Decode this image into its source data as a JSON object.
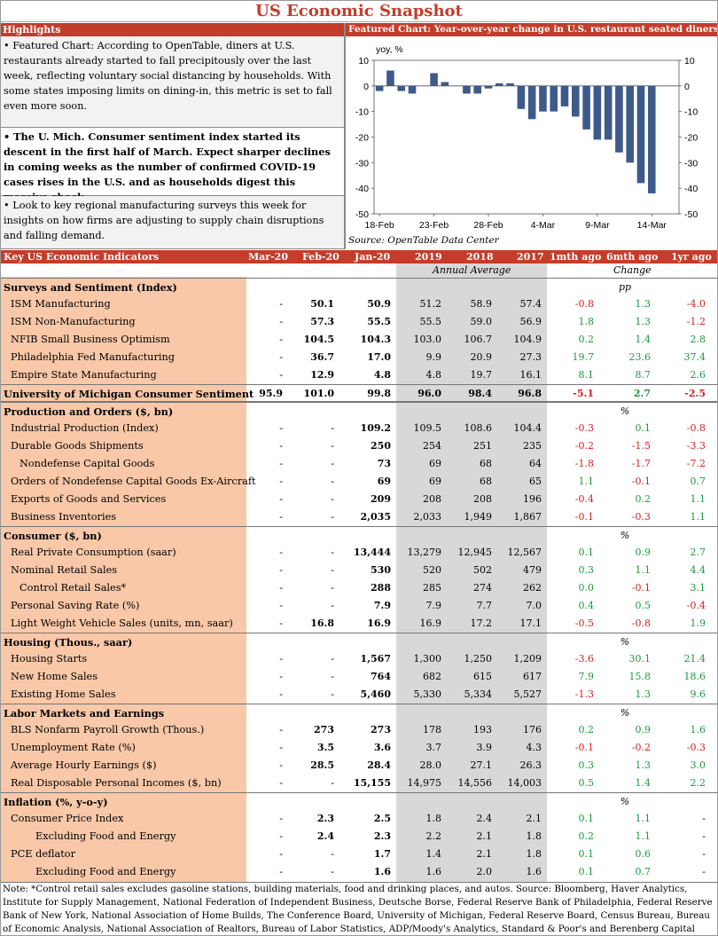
{
  "title": "US Economic Snapshot",
  "highlights": {
    "header": "Highlights",
    "items": [
      "• Featured Chart: According to OpenTable, diners at U.S. restaurants already started to fall precipitously over the last week, reflecting voluntary social distancing by households. With some states imposing limits on dining-in, this metric is set to fall even more soon.",
      "• The U. Mich. Consumer sentiment index started its descent in the first half of March. Expect sharper declines in coming weeks as the number of confirmed COVID-19 cases rises in the U.S. and as households digest this massive shock.",
      "• Look to key regional manufacturing surveys this week for insights on how firms are adjusting to supply chain disruptions and falling demand."
    ]
  },
  "featured": {
    "header": "Featured Chart: Year-over-year change in U.S. restaurant seated diners",
    "source": "Source: OpenTable Data Center"
  },
  "chart_data": {
    "type": "bar",
    "ylabel": "yoy, %",
    "ylim": [
      -50,
      10
    ],
    "yticks": [
      10,
      0,
      -10,
      -20,
      -30,
      -40,
      -50
    ],
    "xtick_labels": [
      "18-Feb",
      "23-Feb",
      "28-Feb",
      "4-Mar",
      "9-Mar",
      "14-Mar"
    ],
    "categories": [
      "18-Feb",
      "19-Feb",
      "20-Feb",
      "21-Feb",
      "22-Feb",
      "23-Feb",
      "24-Feb",
      "25-Feb",
      "26-Feb",
      "27-Feb",
      "28-Feb",
      "29-Feb",
      "1-Mar",
      "2-Mar",
      "3-Mar",
      "4-Mar",
      "5-Mar",
      "6-Mar",
      "7-Mar",
      "8-Mar",
      "9-Mar",
      "10-Mar",
      "11-Mar",
      "12-Mar",
      "13-Mar",
      "14-Mar",
      "15-Mar",
      "16-Mar"
    ],
    "values": [
      -2,
      6,
      -2,
      -3,
      0,
      5,
      1.5,
      0,
      -3,
      -3,
      -1,
      1,
      1,
      -9,
      -13,
      -10,
      -10,
      -8,
      -12,
      -17,
      -21,
      -21,
      -26,
      -30,
      -38,
      -42,
      0,
      0
    ]
  },
  "table": {
    "header": {
      "label": "Key US Economic Indicators",
      "cols": [
        "Mar-20",
        "Feb-20",
        "Jan-20",
        "2019",
        "2018",
        "2017",
        "1mth ago",
        "6mth ago",
        "1yr ago"
      ]
    },
    "annual_average": "Annual Average",
    "change": "Change",
    "sections": [
      {
        "title": "Surveys and Sentiment (Index)",
        "unit": "pp",
        "rows": [
          {
            "label": "ISM Manufacturing",
            "indent": 1,
            "vals": [
              "-",
              "50.1",
              "50.9",
              "51.2",
              "58.9",
              "57.4"
            ],
            "chg": [
              "-0.8",
              "1.3",
              "-4.0"
            ]
          },
          {
            "label": "ISM Non-Manufacturing",
            "indent": 1,
            "vals": [
              "-",
              "57.3",
              "55.5",
              "55.5",
              "59.0",
              "56.9"
            ],
            "chg": [
              "1.8",
              "1.3",
              "-1.2"
            ]
          },
          {
            "label": "NFIB Small Business Optimism",
            "indent": 1,
            "vals": [
              "-",
              "104.5",
              "104.3",
              "103.0",
              "106.7",
              "104.9"
            ],
            "chg": [
              "0.2",
              "1.4",
              "2.8"
            ]
          },
          {
            "label": "Philadelphia Fed Manufacturing",
            "indent": 1,
            "vals": [
              "-",
              "36.7",
              "17.0",
              "9.9",
              "20.9",
              "27.3"
            ],
            "chg": [
              "19.7",
              "23.6",
              "37.4"
            ]
          },
          {
            "label": "Empire State Manufacturing",
            "indent": 1,
            "vals": [
              "-",
              "12.9",
              "4.8",
              "4.8",
              "19.7",
              "16.1"
            ],
            "chg": [
              "8.1",
              "8.7",
              "2.6"
            ]
          },
          {
            "label": "University of Michigan Consumer Sentiment",
            "indent": 0,
            "bold": true,
            "vals": [
              "95.9",
              "101.0",
              "99.8",
              "96.0",
              "98.4",
              "96.8"
            ],
            "chg": [
              "-5.1",
              "2.7",
              "-2.5"
            ]
          }
        ]
      },
      {
        "title": "Production and Orders ($, bn)",
        "unit": "%",
        "rows": [
          {
            "label": "Industrial Production (Index)",
            "indent": 1,
            "vals": [
              "-",
              "-",
              "109.2",
              "109.5",
              "108.6",
              "104.4"
            ],
            "chg": [
              "-0.3",
              "0.1",
              "-0.8"
            ]
          },
          {
            "label": "Durable Goods Shipments",
            "indent": 1,
            "vals": [
              "-",
              "-",
              "250",
              "254",
              "251",
              "235"
            ],
            "chg": [
              "-0.2",
              "-1.5",
              "-3.3"
            ]
          },
          {
            "label": "Nondefense Capital Goods",
            "indent": 2,
            "vals": [
              "-",
              "-",
              "73",
              "69",
              "68",
              "64"
            ],
            "chg": [
              "-1.8",
              "-1.7",
              "-7.2"
            ]
          },
          {
            "label": "Orders of Nondefense Capital Goods Ex-Aircraft",
            "indent": 1,
            "vals": [
              "-",
              "-",
              "69",
              "69",
              "68",
              "65"
            ],
            "chg": [
              "1.1",
              "-0.1",
              "0.7"
            ]
          },
          {
            "label": "Exports of Goods and Services",
            "indent": 1,
            "vals": [
              "-",
              "-",
              "209",
              "208",
              "208",
              "196"
            ],
            "chg": [
              "-0.4",
              "0.2",
              "1.1"
            ]
          },
          {
            "label": "Business Inventories",
            "indent": 1,
            "vals": [
              "-",
              "-",
              "2,035",
              "2,033",
              "1,949",
              "1,867"
            ],
            "chg": [
              "-0.1",
              "-0.3",
              "1.1"
            ]
          }
        ]
      },
      {
        "title": "Consumer ($, bn)",
        "unit": "%",
        "rows": [
          {
            "label": "Real Private Consumption (saar)",
            "indent": 1,
            "vals": [
              "-",
              "-",
              "13,444",
              "13,279",
              "12,945",
              "12,567"
            ],
            "chg": [
              "0.1",
              "0.9",
              "2.7"
            ]
          },
          {
            "label": "Nominal Retail Sales",
            "indent": 1,
            "vals": [
              "-",
              "-",
              "530",
              "520",
              "502",
              "479"
            ],
            "chg": [
              "0.3",
              "1.1",
              "4.4"
            ]
          },
          {
            "label": "Control Retail Sales*",
            "indent": 2,
            "vals": [
              "-",
              "-",
              "288",
              "285",
              "274",
              "262"
            ],
            "chg": [
              "0.0",
              "-0.1",
              "3.1"
            ]
          },
          {
            "label": "Personal Saving Rate (%)",
            "indent": 1,
            "vals": [
              "-",
              "-",
              "7.9",
              "7.9",
              "7.7",
              "7.0"
            ],
            "chg": [
              "0.4",
              "0.5",
              "-0.4"
            ]
          },
          {
            "label": "Light Weight Vehicle Sales (units, mn, saar)",
            "indent": 1,
            "vals": [
              "-",
              "16.8",
              "16.9",
              "16.9",
              "17.2",
              "17.1"
            ],
            "chg": [
              "-0.5",
              "-0.8",
              "1.9"
            ]
          }
        ]
      },
      {
        "title": "Housing (Thous., saar)",
        "unit": "%",
        "rows": [
          {
            "label": "Housing Starts",
            "indent": 1,
            "vals": [
              "-",
              "-",
              "1,567",
              "1,300",
              "1,250",
              "1,209"
            ],
            "chg": [
              "-3.6",
              "30.1",
              "21.4"
            ]
          },
          {
            "label": "New Home Sales",
            "indent": 1,
            "vals": [
              "-",
              "-",
              "764",
              "682",
              "615",
              "617"
            ],
            "chg": [
              "7.9",
              "15.8",
              "18.6"
            ]
          },
          {
            "label": "Existing Home Sales",
            "indent": 1,
            "vals": [
              "-",
              "-",
              "5,460",
              "5,330",
              "5,334",
              "5,527"
            ],
            "chg": [
              "-1.3",
              "1.3",
              "9.6"
            ]
          }
        ]
      },
      {
        "title": "Labor Markets and Earnings",
        "unit": "%",
        "rows": [
          {
            "label": "BLS Nonfarm Payroll Growth (Thous.)",
            "indent": 1,
            "vals": [
              "-",
              "273",
              "273",
              "178",
              "193",
              "176"
            ],
            "chg": [
              "0.2",
              "0.9",
              "1.6"
            ]
          },
          {
            "label": "Unemployment Rate (%)",
            "indent": 1,
            "vals": [
              "-",
              "3.5",
              "3.6",
              "3.7",
              "3.9",
              "4.3"
            ],
            "chg": [
              "-0.1",
              "-0.2",
              "-0.3"
            ]
          },
          {
            "label": "Average Hourly Earnings ($)",
            "indent": 1,
            "vals": [
              "-",
              "28.5",
              "28.4",
              "28.0",
              "27.1",
              "26.3"
            ],
            "chg": [
              "0.3",
              "1.3",
              "3.0"
            ]
          },
          {
            "label": "Real Disposable Personal Incomes ($, bn)",
            "indent": 1,
            "vals": [
              "-",
              "-",
              "15,155",
              "14,975",
              "14,556",
              "14,003"
            ],
            "chg": [
              "0.5",
              "1.4",
              "2.2"
            ]
          }
        ]
      },
      {
        "title": "Inflation (%, y-o-y)",
        "unit": "%",
        "rows": [
          {
            "label": "Consumer Price Index",
            "indent": 1,
            "vals": [
              "-",
              "2.3",
              "2.5",
              "1.8",
              "2.4",
              "2.1"
            ],
            "chg": [
              "0.1",
              "1.1",
              "-"
            ]
          },
          {
            "label": "Excluding Food and Energy",
            "indent": 3,
            "vals": [
              "-",
              "2.4",
              "2.3",
              "2.2",
              "2.1",
              "1.8"
            ],
            "chg": [
              "0.2",
              "1.1",
              "-"
            ]
          },
          {
            "label": "PCE deflator",
            "indent": 1,
            "vals": [
              "-",
              "-",
              "1.7",
              "1.4",
              "2.1",
              "1.8"
            ],
            "chg": [
              "0.1",
              "0.6",
              "-"
            ]
          },
          {
            "label": "Excluding Food and Energy",
            "indent": 3,
            "vals": [
              "-",
              "-",
              "1.6",
              "1.6",
              "2.0",
              "1.6"
            ],
            "chg": [
              "0.1",
              "0.7",
              "-"
            ]
          }
        ]
      }
    ]
  },
  "note": "Note: *Control retail sales excludes gasoline stations, building materials, food and drinking places, and autos. Source: Bloomberg, Haver Analytics, Institute for Supply Management, National Federation of Independent Business, Deutsche Borse, Federal Reserve Bank of Philadelphia, Federal Reserve Bank of New York, National Association of Home Builds, The Conference Board, University of Michigan, Federal Reserve Board, Census Bureau, Bureau of Economic Analysis, National Association of Realtors, Bureau of Labor Statistics, ADP/Moody's Analytics, Standard & Poor's and Berenberg Capital Markets."
}
